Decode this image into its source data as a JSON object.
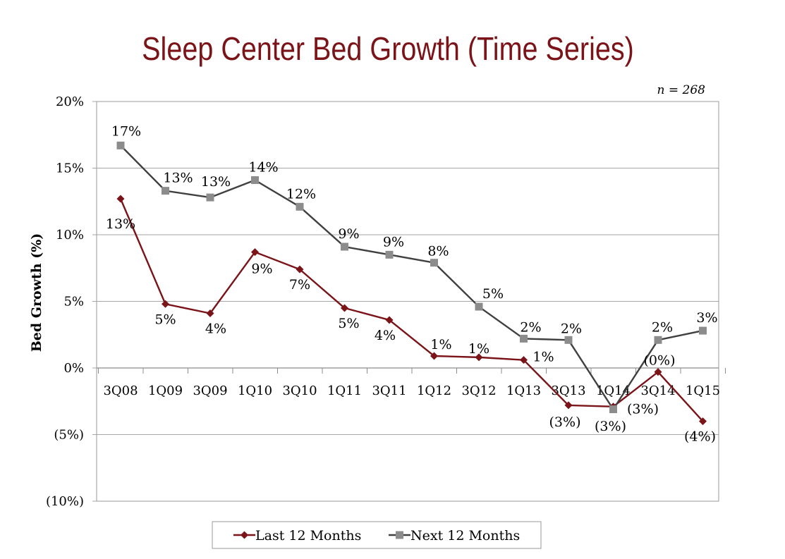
{
  "chart_data": {
    "type": "line",
    "title": "Sleep Center Bed Growth (Time Series)",
    "note": "n = 268",
    "ylabel": "Bed Growth (%)",
    "xlabel": "",
    "ylim": [
      -10,
      20
    ],
    "yticks": [
      -10,
      -5,
      0,
      5,
      10,
      15,
      20
    ],
    "ytick_labels": [
      "(10%)",
      "(5%)",
      "0%",
      "5%",
      "10%",
      "15%",
      "20%"
    ],
    "categories": [
      "3Q08",
      "1Q09",
      "3Q09",
      "1Q10",
      "3Q10",
      "1Q11",
      "3Q11",
      "1Q12",
      "3Q12",
      "1Q13",
      "3Q13",
      "1Q14",
      "3Q14",
      "1Q15"
    ],
    "grid": true,
    "legend_position": "bottom",
    "series": [
      {
        "name": "Last 12 Months",
        "color": "#7a1418",
        "marker": "diamond",
        "values": [
          12.7,
          4.8,
          4.1,
          8.7,
          7.4,
          4.5,
          3.6,
          0.9,
          0.8,
          0.6,
          -2.8,
          -2.9,
          -0.3,
          -4.0
        ],
        "labels": [
          "13%",
          "5%",
          "4%",
          "9%",
          "7%",
          "5%",
          "4%",
          "1%",
          "1%",
          "1%",
          "(3%)",
          "(3%)",
          "(0%)",
          "(4%)"
        ]
      },
      {
        "name": "Next 12 Months",
        "color": "#404040",
        "marker_color": "#8c8c8c",
        "marker": "square",
        "values": [
          16.7,
          13.3,
          12.8,
          14.1,
          12.1,
          9.1,
          8.5,
          7.9,
          4.6,
          2.2,
          2.1,
          -3.1,
          2.1,
          2.8
        ],
        "labels": [
          "17%",
          "13%",
          "13%",
          "14%",
          "12%",
          "9%",
          "9%",
          "8%",
          "5%",
          "2%",
          "2%",
          "(3%)",
          "2%",
          "3%"
        ]
      }
    ]
  }
}
